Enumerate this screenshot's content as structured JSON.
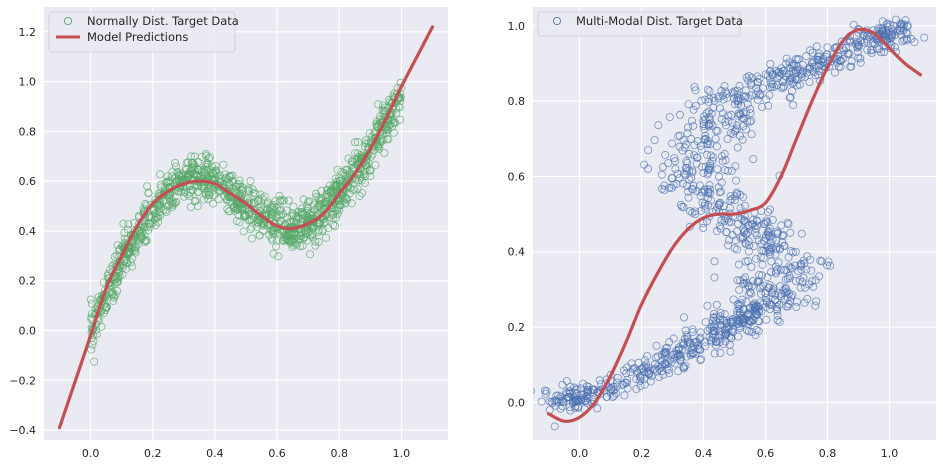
{
  "chart_data": [
    {
      "type": "scatter",
      "title": "",
      "xlabel": "",
      "ylabel": "",
      "xlim": [
        -0.15,
        1.15
      ],
      "ylim": [
        -0.44,
        1.3
      ],
      "xticks": [
        0.0,
        0.2,
        0.4,
        0.6,
        0.8,
        1.0
      ],
      "yticks": [
        -0.4,
        -0.2,
        0.0,
        0.2,
        0.4,
        0.6,
        0.8,
        1.0,
        1.2
      ],
      "xtick_labels": [
        "0.0",
        "0.2",
        "0.4",
        "0.6",
        "0.8",
        "1.0"
      ],
      "ytick_labels": [
        "−0.4",
        "−0.2",
        "0.0",
        "0.2",
        "0.4",
        "0.6",
        "0.8",
        "1.0",
        "1.2"
      ],
      "grid": true,
      "legend_position": "top-left",
      "series": [
        {
          "name": "Normally Dist. Target Data",
          "kind": "scatter",
          "color": "#55a868",
          "marker": "hollow-circle",
          "x": [
            0.0,
            0.05,
            0.1,
            0.15,
            0.2,
            0.25,
            0.3,
            0.35,
            0.4,
            0.45,
            0.5,
            0.55,
            0.6,
            0.65,
            0.7,
            0.75,
            0.8,
            0.85,
            0.9,
            0.95,
            1.0
          ],
          "y": [
            0.0,
            0.14,
            0.28,
            0.38,
            0.47,
            0.55,
            0.6,
            0.61,
            0.59,
            0.55,
            0.5,
            0.46,
            0.43,
            0.41,
            0.43,
            0.47,
            0.55,
            0.63,
            0.72,
            0.84,
            0.95
          ]
        },
        {
          "name": "Model Predictions",
          "kind": "line",
          "color": "#c44e52",
          "x": [
            -0.1,
            0.0,
            0.05,
            0.1,
            0.15,
            0.2,
            0.25,
            0.3,
            0.35,
            0.4,
            0.45,
            0.5,
            0.55,
            0.6,
            0.65,
            0.7,
            0.75,
            0.8,
            0.85,
            0.9,
            0.95,
            1.0,
            1.05,
            1.1
          ],
          "y": [
            -0.39,
            -0.02,
            0.17,
            0.3,
            0.42,
            0.51,
            0.56,
            0.59,
            0.6,
            0.59,
            0.55,
            0.51,
            0.46,
            0.42,
            0.41,
            0.43,
            0.47,
            0.55,
            0.63,
            0.73,
            0.85,
            0.98,
            1.1,
            1.22
          ]
        }
      ]
    },
    {
      "type": "scatter",
      "title": "",
      "xlabel": "",
      "ylabel": "",
      "xlim": [
        -0.15,
        1.15
      ],
      "ylim": [
        -0.1,
        1.05
      ],
      "xticks": [
        0.0,
        0.2,
        0.4,
        0.6,
        0.8,
        1.0
      ],
      "yticks": [
        0.0,
        0.2,
        0.4,
        0.6,
        0.8,
        1.0
      ],
      "xtick_labels": [
        "0.0",
        "0.2",
        "0.4",
        "0.6",
        "0.8",
        "1.0"
      ],
      "ytick_labels": [
        "0.0",
        "0.2",
        "0.4",
        "0.6",
        "0.8",
        "1.0"
      ],
      "grid": true,
      "legend_position": "top-left",
      "series": [
        {
          "name": "Multi-Modal Dist. Target Data",
          "kind": "scatter",
          "color": "#4c72b0",
          "marker": "hollow-circle",
          "x": [
            -0.08,
            0.0,
            0.1,
            0.2,
            0.3,
            0.4,
            0.48,
            0.55,
            0.62,
            0.66,
            0.65,
            0.6,
            0.52,
            0.45,
            0.4,
            0.38,
            0.4,
            0.45,
            0.52,
            0.6,
            0.7,
            0.8,
            0.9,
            1.0,
            1.03
          ],
          "y": [
            0.0,
            0.01,
            0.04,
            0.08,
            0.12,
            0.16,
            0.2,
            0.23,
            0.27,
            0.33,
            0.38,
            0.43,
            0.47,
            0.52,
            0.58,
            0.65,
            0.71,
            0.77,
            0.81,
            0.85,
            0.88,
            0.91,
            0.95,
            0.98,
            0.99
          ]
        },
        {
          "name": "Model Predictions",
          "kind": "line",
          "color": "#c44e52",
          "x": [
            -0.1,
            -0.05,
            0.0,
            0.05,
            0.1,
            0.15,
            0.2,
            0.25,
            0.3,
            0.35,
            0.4,
            0.45,
            0.5,
            0.55,
            0.6,
            0.65,
            0.7,
            0.75,
            0.8,
            0.85,
            0.9,
            0.95,
            1.0,
            1.05,
            1.1
          ],
          "y": [
            -0.03,
            -0.05,
            -0.04,
            0.0,
            0.07,
            0.16,
            0.26,
            0.34,
            0.41,
            0.46,
            0.49,
            0.5,
            0.5,
            0.51,
            0.53,
            0.6,
            0.7,
            0.8,
            0.89,
            0.96,
            0.99,
            0.98,
            0.94,
            0.9,
            0.87
          ]
        }
      ]
    }
  ]
}
